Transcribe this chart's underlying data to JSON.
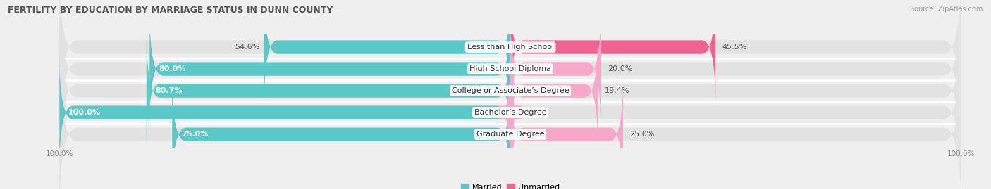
{
  "title": "FERTILITY BY EDUCATION BY MARRIAGE STATUS IN DUNN COUNTY",
  "source": "Source: ZipAtlas.com",
  "categories": [
    "Less than High School",
    "High School Diploma",
    "College or Associate’s Degree",
    "Bachelor’s Degree",
    "Graduate Degree"
  ],
  "married": [
    54.6,
    80.0,
    80.7,
    100.0,
    75.0
  ],
  "unmarried": [
    45.5,
    20.0,
    19.4,
    0.0,
    25.0
  ],
  "married_color": "#5bc8c8",
  "unmarried_color_dark": "#f06292",
  "unmarried_color_light": "#f8a8c8",
  "bg_color": "#efefef",
  "bar_bg": "#e2e2e2",
  "bar_height": 0.62,
  "title_fontsize": 9,
  "label_fontsize": 8,
  "legend_fontsize": 8,
  "axis_label_fontsize": 7.5
}
